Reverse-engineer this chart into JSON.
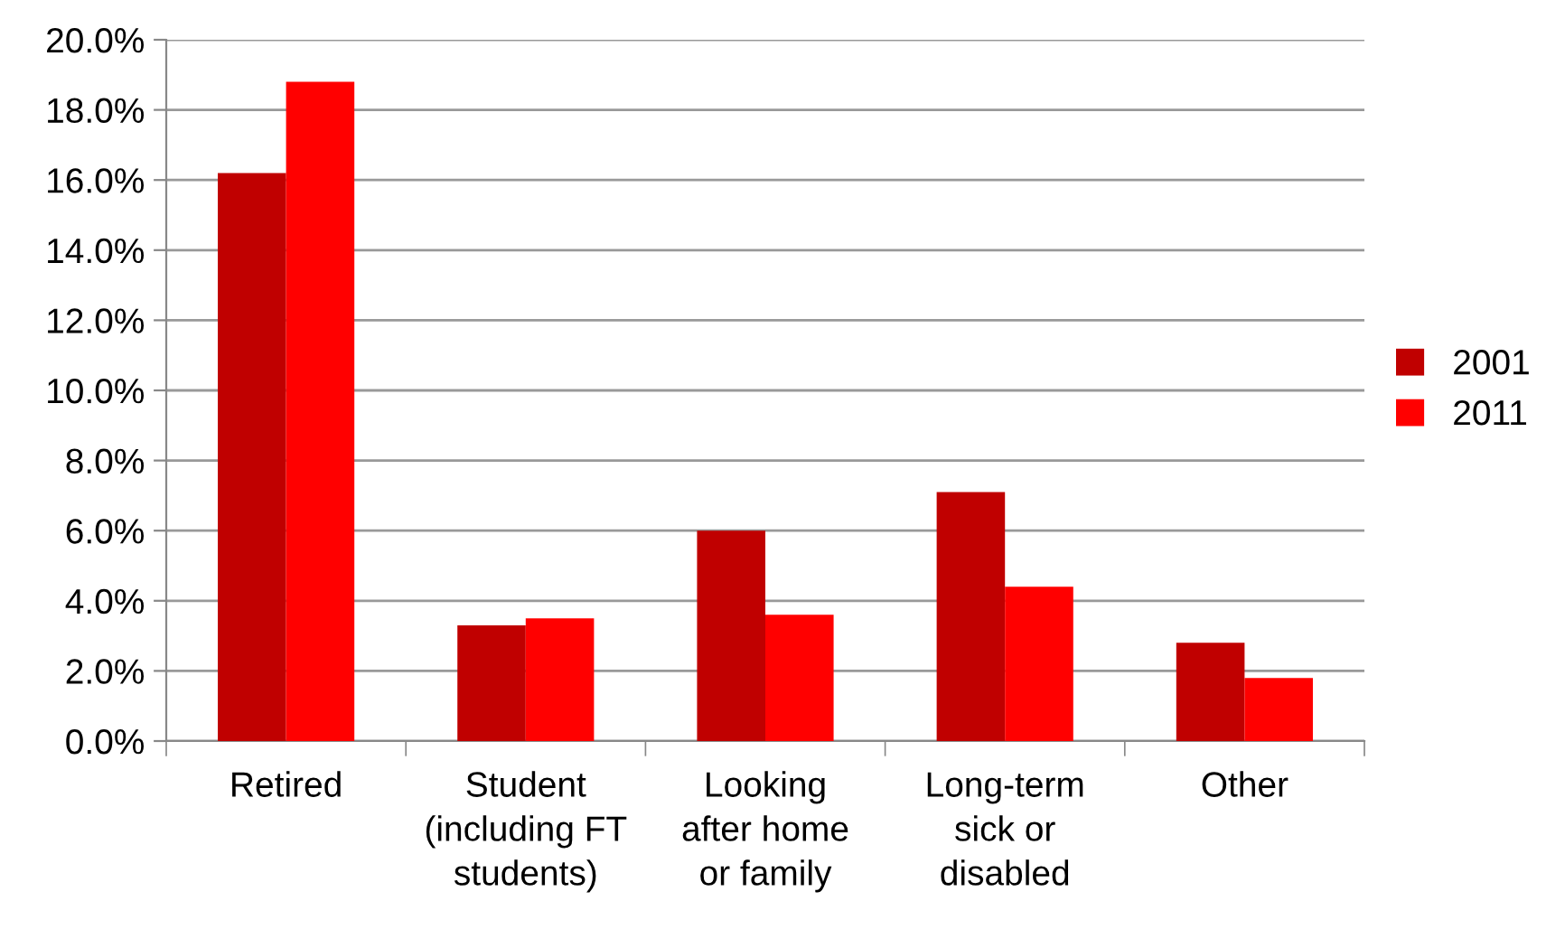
{
  "chart_data": {
    "type": "bar",
    "categories": [
      "Retired",
      "Student\n(including FT\nstudents)",
      "Looking\nafter home\nor family",
      "Long-term\nsick or\ndisabled",
      "Other"
    ],
    "series": [
      {
        "name": "2001",
        "color": "#c00000",
        "values": [
          16.2,
          3.3,
          6.0,
          7.1,
          2.8
        ]
      },
      {
        "name": "2011",
        "color": "#ff0000",
        "values": [
          18.8,
          3.5,
          3.6,
          4.4,
          1.8
        ]
      }
    ],
    "ylim": [
      0,
      20
    ],
    "yticks": [
      {
        "value": 0,
        "label": "0.0%"
      },
      {
        "value": 2,
        "label": "2.0%"
      },
      {
        "value": 4,
        "label": "4.0%"
      },
      {
        "value": 6,
        "label": "6.0%"
      },
      {
        "value": 8,
        "label": "8.0%"
      },
      {
        "value": 10,
        "label": "10.0%"
      },
      {
        "value": 12,
        "label": "12.0%"
      },
      {
        "value": 14,
        "label": "14.0%"
      },
      {
        "value": 16,
        "label": "16.0%"
      },
      {
        "value": 18,
        "label": "18.0%"
      },
      {
        "value": 20,
        "label": "20.0%"
      }
    ],
    "grid": "y",
    "legend": "right"
  }
}
